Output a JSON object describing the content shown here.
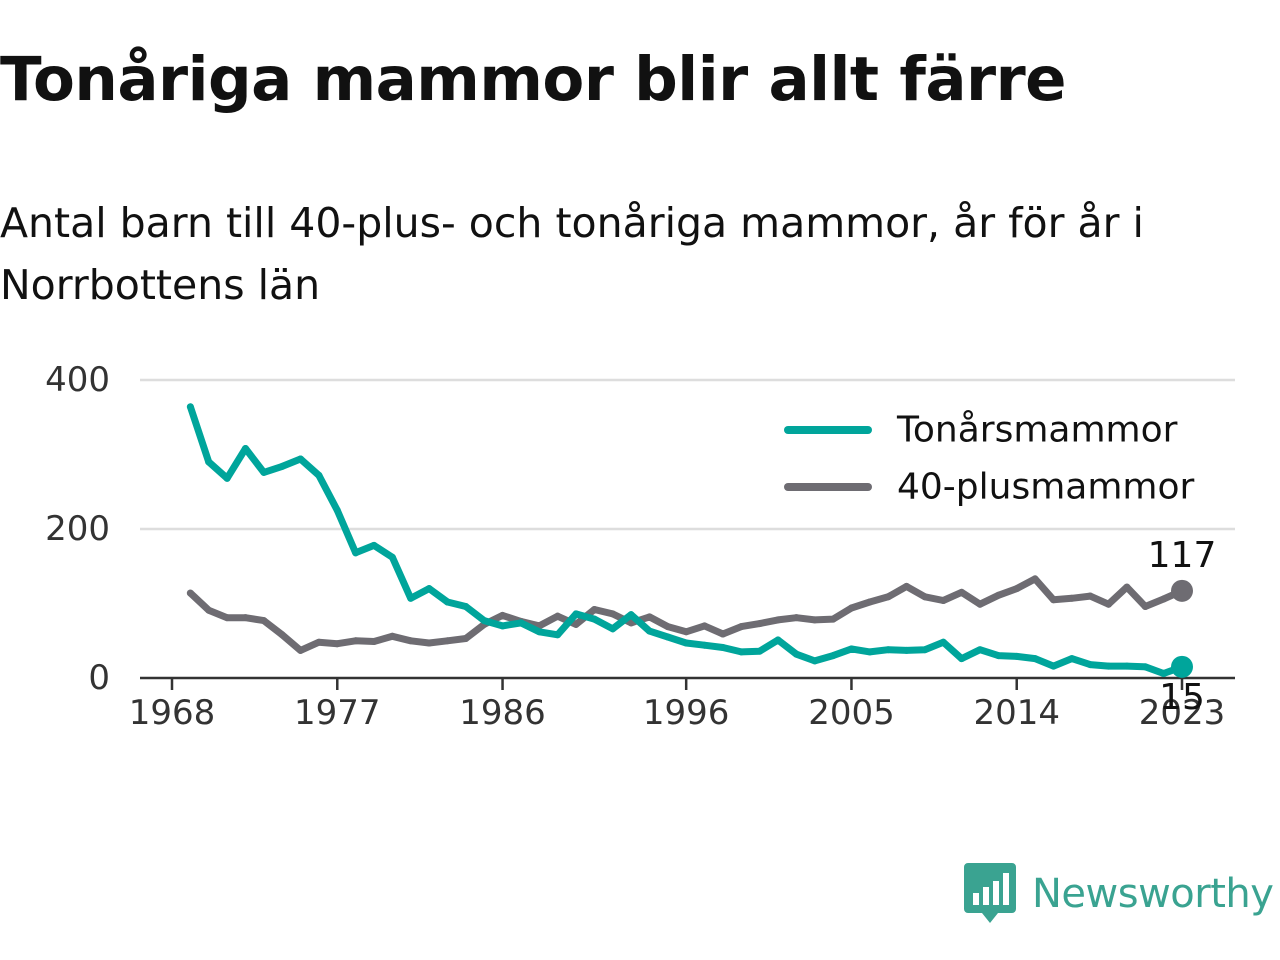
{
  "chart_data": {
    "type": "line",
    "title": "Tonåriga mammor blir allt färre",
    "subtitle": "Antal barn till 40-plus- och tonåriga mammor, år för år i Norrbottens län",
    "xlabel": "",
    "ylabel": "",
    "x": [
      1969,
      1970,
      1971,
      1972,
      1973,
      1974,
      1975,
      1976,
      1977,
      1978,
      1979,
      1980,
      1981,
      1982,
      1983,
      1984,
      1985,
      1986,
      1987,
      1988,
      1989,
      1990,
      1991,
      1992,
      1993,
      1994,
      1995,
      1996,
      1997,
      1998,
      1999,
      2000,
      2001,
      2002,
      2003,
      2004,
      2005,
      2006,
      2007,
      2008,
      2009,
      2010,
      2011,
      2012,
      2013,
      2014,
      2015,
      2016,
      2017,
      2018,
      2019,
      2020,
      2021,
      2022,
      2023
    ],
    "series": [
      {
        "name": "Tonårsmammor",
        "color": "#00a59b",
        "values": [
          364,
          290,
          268,
          308,
          276,
          284,
          294,
          272,
          225,
          168,
          178,
          162,
          107,
          120,
          102,
          96,
          77,
          70,
          74,
          62,
          58,
          86,
          79,
          66,
          85,
          63,
          55,
          47,
          44,
          41,
          35,
          36,
          51,
          32,
          23,
          30,
          39,
          35,
          38,
          37,
          38,
          48,
          26,
          38,
          30,
          29,
          26,
          16,
          26,
          18,
          16,
          16,
          15,
          6,
          15
        ]
      },
      {
        "name": "40-plusmammor",
        "color": "#6e6c72",
        "values": [
          114,
          91,
          81,
          81,
          77,
          58,
          37,
          48,
          46,
          50,
          49,
          56,
          50,
          47,
          50,
          53,
          72,
          84,
          76,
          70,
          83,
          72,
          92,
          86,
          74,
          82,
          69,
          62,
          70,
          59,
          69,
          73,
          78,
          81,
          78,
          79,
          94,
          102,
          109,
          123,
          109,
          104,
          115,
          99,
          111,
          120,
          133,
          105,
          107,
          110,
          99,
          122,
          96,
          106,
          117
        ]
      }
    ],
    "xticks": [
      "1968",
      "1977",
      "1986",
      "1996",
      "2005",
      "2014",
      "2023"
    ],
    "yticks": [
      "0",
      "200",
      "400"
    ],
    "ylim": [
      0,
      400
    ],
    "grid": true,
    "legend_position": "top-right",
    "end_labels": {
      "Tonårsmammor": "15",
      "40-plusmammor": "117"
    }
  },
  "branding": {
    "name": "Newsworthy",
    "logo_icon": "bar-chart-speech-bubble-icon",
    "color": "#3aa391"
  }
}
